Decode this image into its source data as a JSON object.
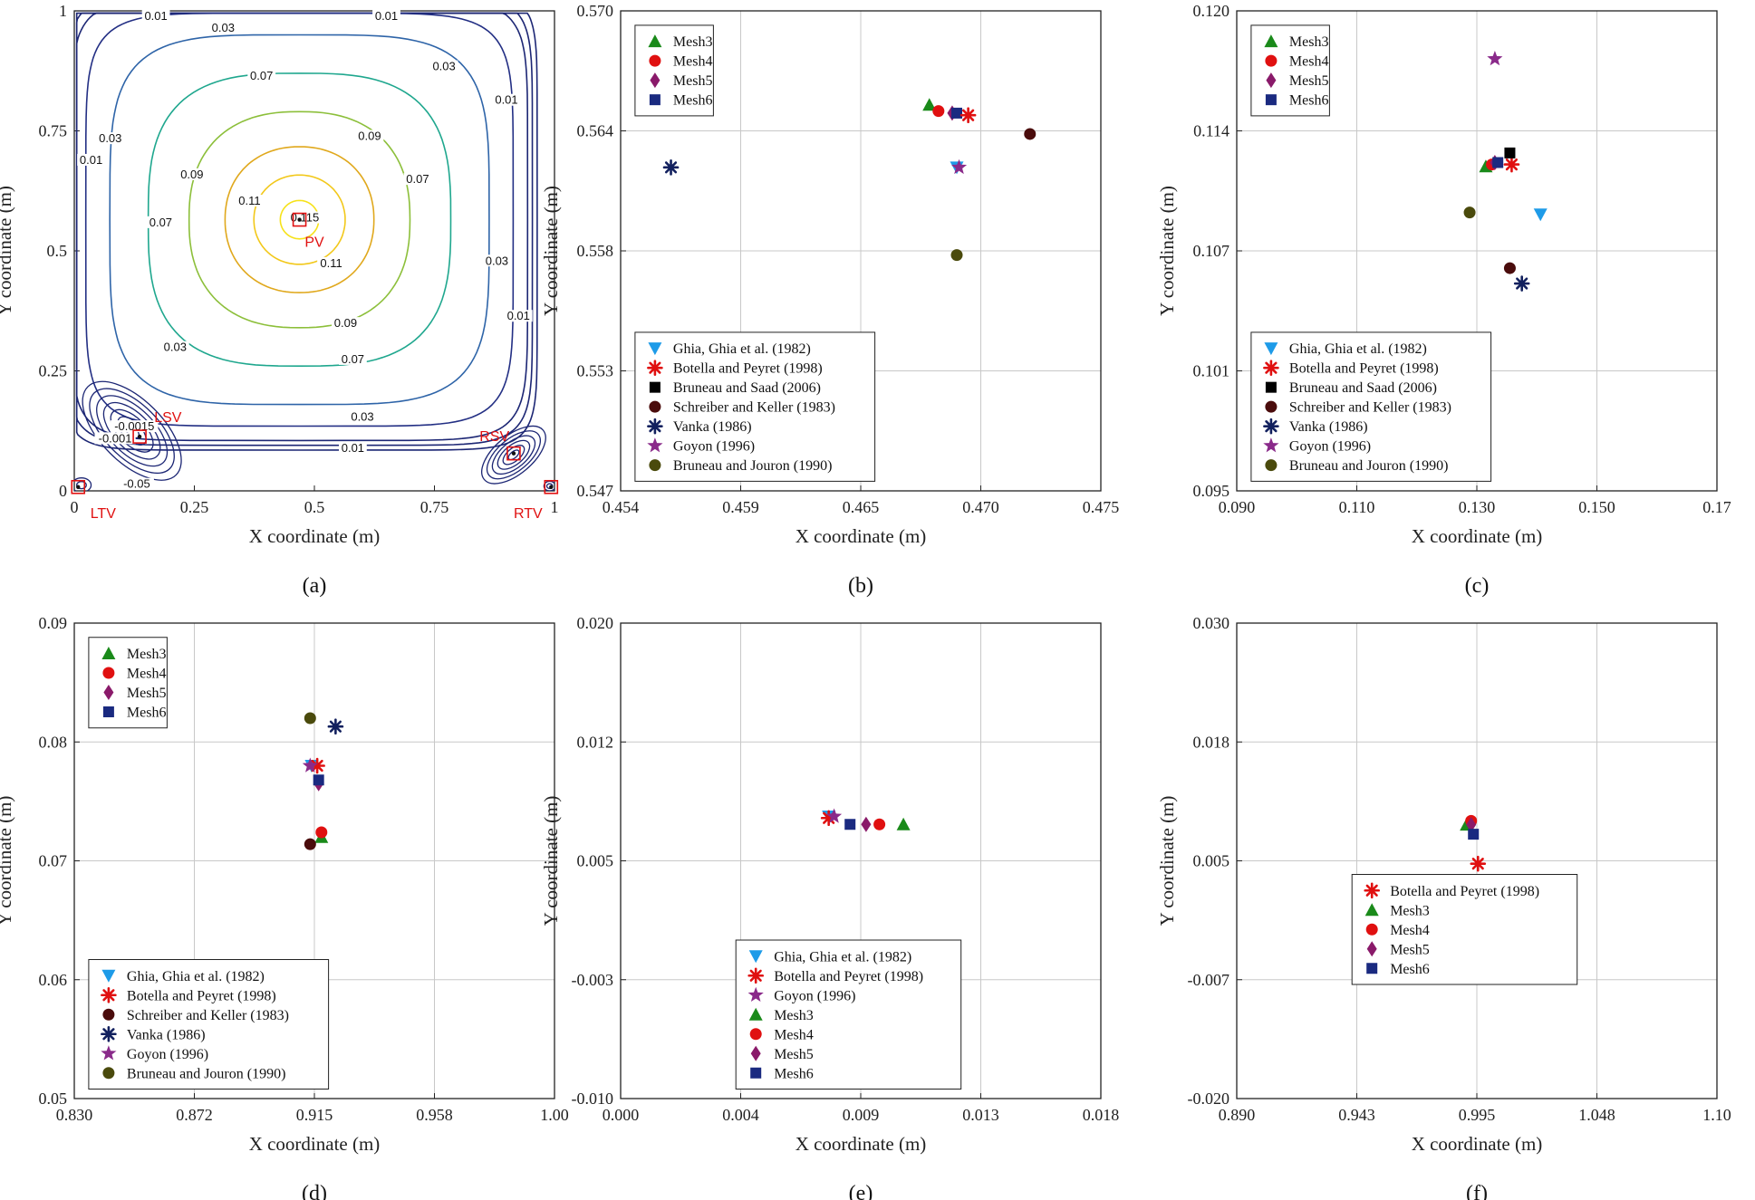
{
  "colors": {
    "Mesh3": "#1a8a1a",
    "Mesh4": "#e01010",
    "Mesh5": "#8a1a6a",
    "Mesh6": "#1a2a80",
    "Ghia": "#1e9be8",
    "Botella": "#e01010",
    "Bruneau_Saad": "#000000",
    "Schreiber": "#4a0c0c",
    "Vanka": "#12205e",
    "Goyon": "#8a2a8a",
    "Bruneau_Jouron": "#4a4a0c",
    "vortex": "#e01010"
  },
  "chart_data": [
    {
      "id": "a",
      "panel_label": "(a)",
      "type": "contour",
      "xlabel": "X coordinate (m)",
      "ylabel": "Y coordinate (m)",
      "xlim": [
        0,
        1
      ],
      "ylim": [
        0,
        1
      ],
      "xticks": [
        "0",
        "0.25",
        "0.5",
        "0.75",
        "1"
      ],
      "yticks": [
        "0",
        "0.25",
        "0.5",
        "0.75",
        "1"
      ],
      "contour_levels": [
        "0.01",
        "0.03",
        "0.07",
        "0.09",
        "0.11",
        "0.115",
        "-0.001",
        "-0.0015",
        "-0.05"
      ],
      "contour_labels": [
        {
          "text": "0.01",
          "x": 0.17,
          "y": 0.985
        },
        {
          "text": "0.01",
          "x": 0.65,
          "y": 0.985
        },
        {
          "text": "0.03",
          "x": 0.31,
          "y": 0.96
        },
        {
          "text": "0.03",
          "x": 0.77,
          "y": 0.88
        },
        {
          "text": "0.01",
          "x": 0.9,
          "y": 0.81
        },
        {
          "text": "0.07",
          "x": 0.39,
          "y": 0.86
        },
        {
          "text": "0.03",
          "x": 0.075,
          "y": 0.73
        },
        {
          "text": "0.01",
          "x": 0.035,
          "y": 0.685
        },
        {
          "text": "0.09",
          "x": 0.615,
          "y": 0.735
        },
        {
          "text": "0.09",
          "x": 0.245,
          "y": 0.655
        },
        {
          "text": "0.07",
          "x": 0.18,
          "y": 0.555
        },
        {
          "text": "0.11",
          "x": 0.365,
          "y": 0.6
        },
        {
          "text": "0.07",
          "x": 0.715,
          "y": 0.645
        },
        {
          "text": "0.115",
          "x": 0.48,
          "y": 0.565
        },
        {
          "text": "0.03",
          "x": 0.88,
          "y": 0.475
        },
        {
          "text": "0.11",
          "x": 0.535,
          "y": 0.47
        },
        {
          "text": "0.01",
          "x": 0.925,
          "y": 0.36
        },
        {
          "text": "0.09",
          "x": 0.565,
          "y": 0.345
        },
        {
          "text": "0.03",
          "x": 0.21,
          "y": 0.295
        },
        {
          "text": "0.07",
          "x": 0.58,
          "y": 0.27
        },
        {
          "text": "0.03",
          "x": 0.6,
          "y": 0.15
        },
        {
          "text": "0.01",
          "x": 0.58,
          "y": 0.085
        },
        {
          "text": "-0.001",
          "x": 0.085,
          "y": 0.105
        },
        {
          "text": "-0.0015",
          "x": 0.125,
          "y": 0.13
        },
        {
          "text": "-0.05",
          "x": 0.13,
          "y": 0.01
        }
      ],
      "vortex_markers": [
        {
          "label": "PV",
          "x": 0.469,
          "y": 0.565,
          "label_x": 0.5,
          "label_y": 0.52
        },
        {
          "label": "LSV",
          "x": 0.136,
          "y": 0.113,
          "label_x": 0.195,
          "label_y": 0.155
        },
        {
          "label": "RSV",
          "x": 0.915,
          "y": 0.078,
          "label_x": 0.875,
          "label_y": 0.115
        },
        {
          "label": "LTV",
          "x": 0.008,
          "y": 0.008,
          "label_x": 0.06,
          "label_y": -0.045
        },
        {
          "label": "RTV",
          "x": 0.993,
          "y": 0.008,
          "label_x": 0.945,
          "label_y": -0.045
        }
      ]
    },
    {
      "id": "b",
      "panel_label": "(b)",
      "type": "scatter",
      "xlabel": "X coordinate (m)",
      "ylabel": "Y coordinate (m)",
      "xlim": [
        0.454,
        0.475
      ],
      "ylim": [
        0.547,
        0.57
      ],
      "xticks": [
        "0.454",
        "0.459",
        "0.465",
        "0.470",
        "0.475"
      ],
      "yticks": [
        "0.547",
        "0.553",
        "0.558",
        "0.564",
        "0.570"
      ],
      "legend_top": [
        "Mesh3",
        "Mesh4",
        "Mesh5",
        "Mesh6"
      ],
      "legend_bottom": [
        "Ghia, Ghia et al. (1982)",
        "Botella and Peyret (1998)",
        "Bruneau and Saad (2006)",
        "Schreiber and Keller (1983)",
        "Vanka (1986)",
        "Goyon (1996)",
        "Bruneau and Jouron (1990)"
      ],
      "series": [
        {
          "name": "Mesh3",
          "marker": "triangle-up",
          "color": "Mesh3",
          "points": [
            [
              0.4675,
              0.5655
            ]
          ]
        },
        {
          "name": "Mesh4",
          "marker": "circle",
          "color": "Mesh4",
          "points": [
            [
              0.4679,
              0.5652
            ]
          ]
        },
        {
          "name": "Mesh5",
          "marker": "diamond",
          "color": "Mesh5",
          "points": [
            [
              0.4685,
              0.5651
            ]
          ]
        },
        {
          "name": "Mesh6",
          "marker": "square",
          "color": "Mesh6",
          "points": [
            [
              0.4687,
              0.5651
            ]
          ]
        },
        {
          "name": "Ghia, Ghia et al. (1982)",
          "marker": "triangle-down",
          "color": "Ghia",
          "points": [
            [
              0.4687,
              0.5625
            ]
          ]
        },
        {
          "name": "Botella and Peyret (1998)",
          "marker": "asterisk",
          "color": "Botella",
          "points": [
            [
              0.4692,
              0.565
            ]
          ]
        },
        {
          "name": "Schreiber and Keller (1983)",
          "marker": "circle",
          "color": "Schreiber",
          "points": [
            [
              0.4719,
              0.5641
            ]
          ]
        },
        {
          "name": "Vanka (1986)",
          "marker": "asterisk",
          "color": "Vanka",
          "points": [
            [
              0.4562,
              0.5625
            ]
          ]
        },
        {
          "name": "Goyon (1996)",
          "marker": "star",
          "color": "Goyon",
          "points": [
            [
              0.4688,
              0.5625
            ]
          ]
        },
        {
          "name": "Bruneau and Jouron (1990)",
          "marker": "circle",
          "color": "Bruneau_Jouron",
          "points": [
            [
              0.4687,
              0.5583
            ]
          ]
        }
      ]
    },
    {
      "id": "c",
      "panel_label": "(c)",
      "type": "scatter",
      "xlabel": "X coordinate (m)",
      "ylabel": "Y coordinate (m)",
      "xlim": [
        0.09,
        0.17
      ],
      "ylim": [
        0.095,
        0.12
      ],
      "xticks": [
        "0.090",
        "0.110",
        "0.130",
        "0.150",
        "0.17"
      ],
      "yticks": [
        "0.095",
        "0.101",
        "0.107",
        "0.114",
        "0.120"
      ],
      "legend_top": [
        "Mesh3",
        "Mesh4",
        "Mesh5",
        "Mesh6"
      ],
      "legend_bottom": [
        "Ghia, Ghia et al. (1982)",
        "Botella and Peyret (1998)",
        "Bruneau and Saad (2006)",
        "Schreiber and Keller (1983)",
        "Vanka (1986)",
        "Goyon (1996)",
        "Bruneau and Jouron (1990)"
      ],
      "series": [
        {
          "name": "Mesh3",
          "marker": "triangle-up",
          "color": "Mesh3",
          "points": [
            [
              0.1315,
              0.1119
            ]
          ]
        },
        {
          "name": "Mesh4",
          "marker": "circle",
          "color": "Mesh4",
          "points": [
            [
              0.1325,
              0.112
            ]
          ]
        },
        {
          "name": "Mesh5",
          "marker": "diamond",
          "color": "Mesh5",
          "points": [
            [
              0.133,
              0.1121
            ]
          ]
        },
        {
          "name": "Mesh6",
          "marker": "square",
          "color": "Mesh6",
          "points": [
            [
              0.1335,
              0.1121
            ]
          ]
        },
        {
          "name": "Ghia, Ghia et al. (1982)",
          "marker": "triangle-down",
          "color": "Ghia",
          "points": [
            [
              0.1406,
              0.1094
            ]
          ]
        },
        {
          "name": "Botella and Peyret (1998)",
          "marker": "asterisk",
          "color": "Botella",
          "points": [
            [
              0.1358,
              0.112
            ]
          ]
        },
        {
          "name": "Bruneau and Saad (2006)",
          "marker": "square",
          "color": "Bruneau_Saad",
          "points": [
            [
              0.1355,
              0.1126
            ]
          ]
        },
        {
          "name": "Schreiber and Keller (1983)",
          "marker": "circle",
          "color": "Schreiber",
          "points": [
            [
              0.1355,
              0.1066
            ]
          ]
        },
        {
          "name": "Vanka (1986)",
          "marker": "asterisk",
          "color": "Vanka",
          "points": [
            [
              0.1375,
              0.1058
            ]
          ]
        },
        {
          "name": "Goyon (1996)",
          "marker": "star",
          "color": "Goyon",
          "points": [
            [
              0.133,
              0.1175
            ]
          ]
        },
        {
          "name": "Bruneau and Jouron (1990)",
          "marker": "circle",
          "color": "Bruneau_Jouron",
          "points": [
            [
              0.1288,
              0.1095
            ]
          ]
        }
      ]
    },
    {
      "id": "d",
      "panel_label": "(d)",
      "type": "scatter",
      "xlabel": "X coordinate (m)",
      "ylabel": "Y coordinate (m)",
      "xlim": [
        0.83,
        1.0
      ],
      "ylim": [
        0.05,
        0.09
      ],
      "xticks": [
        "0.830",
        "0.872",
        "0.915",
        "0.958",
        "1.00"
      ],
      "yticks": [
        "0.05",
        "0.06",
        "0.07",
        "0.08",
        "0.09"
      ],
      "legend_top": [
        "Mesh3",
        "Mesh4",
        "Mesh5",
        "Mesh6"
      ],
      "legend_bottom": [
        "Ghia, Ghia et al. (1982)",
        "Botella and Peyret (1998)",
        "Schreiber and Keller (1983)",
        "Vanka (1986)",
        "Goyon (1996)",
        "Bruneau and Jouron (1990)"
      ],
      "series": [
        {
          "name": "Mesh3",
          "marker": "triangle-up",
          "color": "Mesh3",
          "points": [
            [
              0.9175,
              0.072
            ]
          ]
        },
        {
          "name": "Mesh4",
          "marker": "circle",
          "color": "Mesh4",
          "points": [
            [
              0.9175,
              0.0724
            ]
          ]
        },
        {
          "name": "Mesh5",
          "marker": "diamond",
          "color": "Mesh5",
          "points": [
            [
              0.9165,
              0.0765
            ]
          ]
        },
        {
          "name": "Mesh6",
          "marker": "square",
          "color": "Mesh6",
          "points": [
            [
              0.9165,
              0.0768
            ]
          ]
        },
        {
          "name": "Ghia, Ghia et al. (1982)",
          "marker": "triangle-down",
          "color": "Ghia",
          "points": [
            [
              0.914,
              0.078
            ]
          ]
        },
        {
          "name": "Botella and Peyret (1998)",
          "marker": "asterisk",
          "color": "Botella",
          "points": [
            [
              0.916,
              0.078
            ]
          ]
        },
        {
          "name": "Schreiber and Keller (1983)",
          "marker": "circle",
          "color": "Schreiber",
          "points": [
            [
              0.9135,
              0.0714
            ]
          ]
        },
        {
          "name": "Vanka (1986)",
          "marker": "asterisk",
          "color": "Vanka",
          "points": [
            [
              0.9225,
              0.0813
            ]
          ]
        },
        {
          "name": "Goyon (1996)",
          "marker": "star",
          "color": "Goyon",
          "points": [
            [
              0.9135,
              0.078
            ]
          ]
        },
        {
          "name": "Bruneau and Jouron (1990)",
          "marker": "circle",
          "color": "Bruneau_Jouron",
          "points": [
            [
              0.9135,
              0.082
            ]
          ]
        }
      ]
    },
    {
      "id": "e",
      "panel_label": "(e)",
      "type": "scatter",
      "xlabel": "X coordinate (m)",
      "ylabel": "Y coordinate (m)",
      "xlim": [
        0.0,
        0.018
      ],
      "ylim": [
        -0.01,
        0.02
      ],
      "xticks": [
        "0.000",
        "0.004",
        "0.009",
        "0.013",
        "0.018"
      ],
      "yticks": [
        "-0.010",
        "-0.003",
        "0.005",
        "0.012",
        "0.020"
      ],
      "legend_top": [],
      "legend_bottom": [
        "Ghia, Ghia et al. (1982)",
        "Botella and Peyret (1998)",
        "Goyon (1996)",
        "Mesh3",
        "Mesh4",
        "Mesh5",
        "Mesh6"
      ],
      "series": [
        {
          "name": "Ghia, Ghia et al. (1982)",
          "marker": "triangle-down",
          "color": "Ghia",
          "points": [
            [
              0.0078,
              0.0078
            ]
          ]
        },
        {
          "name": "Botella and Peyret (1998)",
          "marker": "asterisk",
          "color": "Botella",
          "points": [
            [
              0.0078,
              0.0077
            ]
          ]
        },
        {
          "name": "Goyon (1996)",
          "marker": "star",
          "color": "Goyon",
          "points": [
            [
              0.008,
              0.0078
            ]
          ]
        },
        {
          "name": "Mesh3",
          "marker": "triangle-up",
          "color": "Mesh3",
          "points": [
            [
              0.0106,
              0.0073
            ]
          ]
        },
        {
          "name": "Mesh4",
          "marker": "circle",
          "color": "Mesh4",
          "points": [
            [
              0.0097,
              0.0073
            ]
          ]
        },
        {
          "name": "Mesh5",
          "marker": "diamond",
          "color": "Mesh5",
          "points": [
            [
              0.0092,
              0.0073
            ]
          ]
        },
        {
          "name": "Mesh6",
          "marker": "square",
          "color": "Mesh6",
          "points": [
            [
              0.0086,
              0.0073
            ]
          ]
        }
      ]
    },
    {
      "id": "f",
      "panel_label": "(f)",
      "type": "scatter",
      "xlabel": "X coordinate (m)",
      "ylabel": "Y coordinate (m)",
      "xlim": [
        0.89,
        1.1
      ],
      "ylim": [
        -0.02,
        0.03
      ],
      "xticks": [
        "0.890",
        "0.943",
        "0.995",
        "1.048",
        "1.10"
      ],
      "yticks": [
        "-0.020",
        "-0.007",
        "0.005",
        "0.018",
        "0.030"
      ],
      "legend_top": [],
      "legend_bottom": [
        "Botella and Peyret (1998)",
        "Mesh3",
        "Mesh4",
        "Mesh5",
        "Mesh6"
      ],
      "series": [
        {
          "name": "Botella and Peyret (1998)",
          "marker": "asterisk",
          "color": "Botella",
          "points": [
            [
              0.9955,
              0.0047
            ]
          ]
        },
        {
          "name": "Mesh3",
          "marker": "triangle-up",
          "color": "Mesh3",
          "points": [
            [
              0.9905,
              0.0088
            ]
          ]
        },
        {
          "name": "Mesh4",
          "marker": "circle",
          "color": "Mesh4",
          "points": [
            [
              0.9925,
              0.0092
            ]
          ]
        },
        {
          "name": "Mesh5",
          "marker": "diamond",
          "color": "Mesh5",
          "points": [
            [
              0.9925,
              0.0088
            ]
          ]
        },
        {
          "name": "Mesh6",
          "marker": "square",
          "color": "Mesh6",
          "points": [
            [
              0.9935,
              0.0078
            ]
          ]
        }
      ]
    }
  ]
}
